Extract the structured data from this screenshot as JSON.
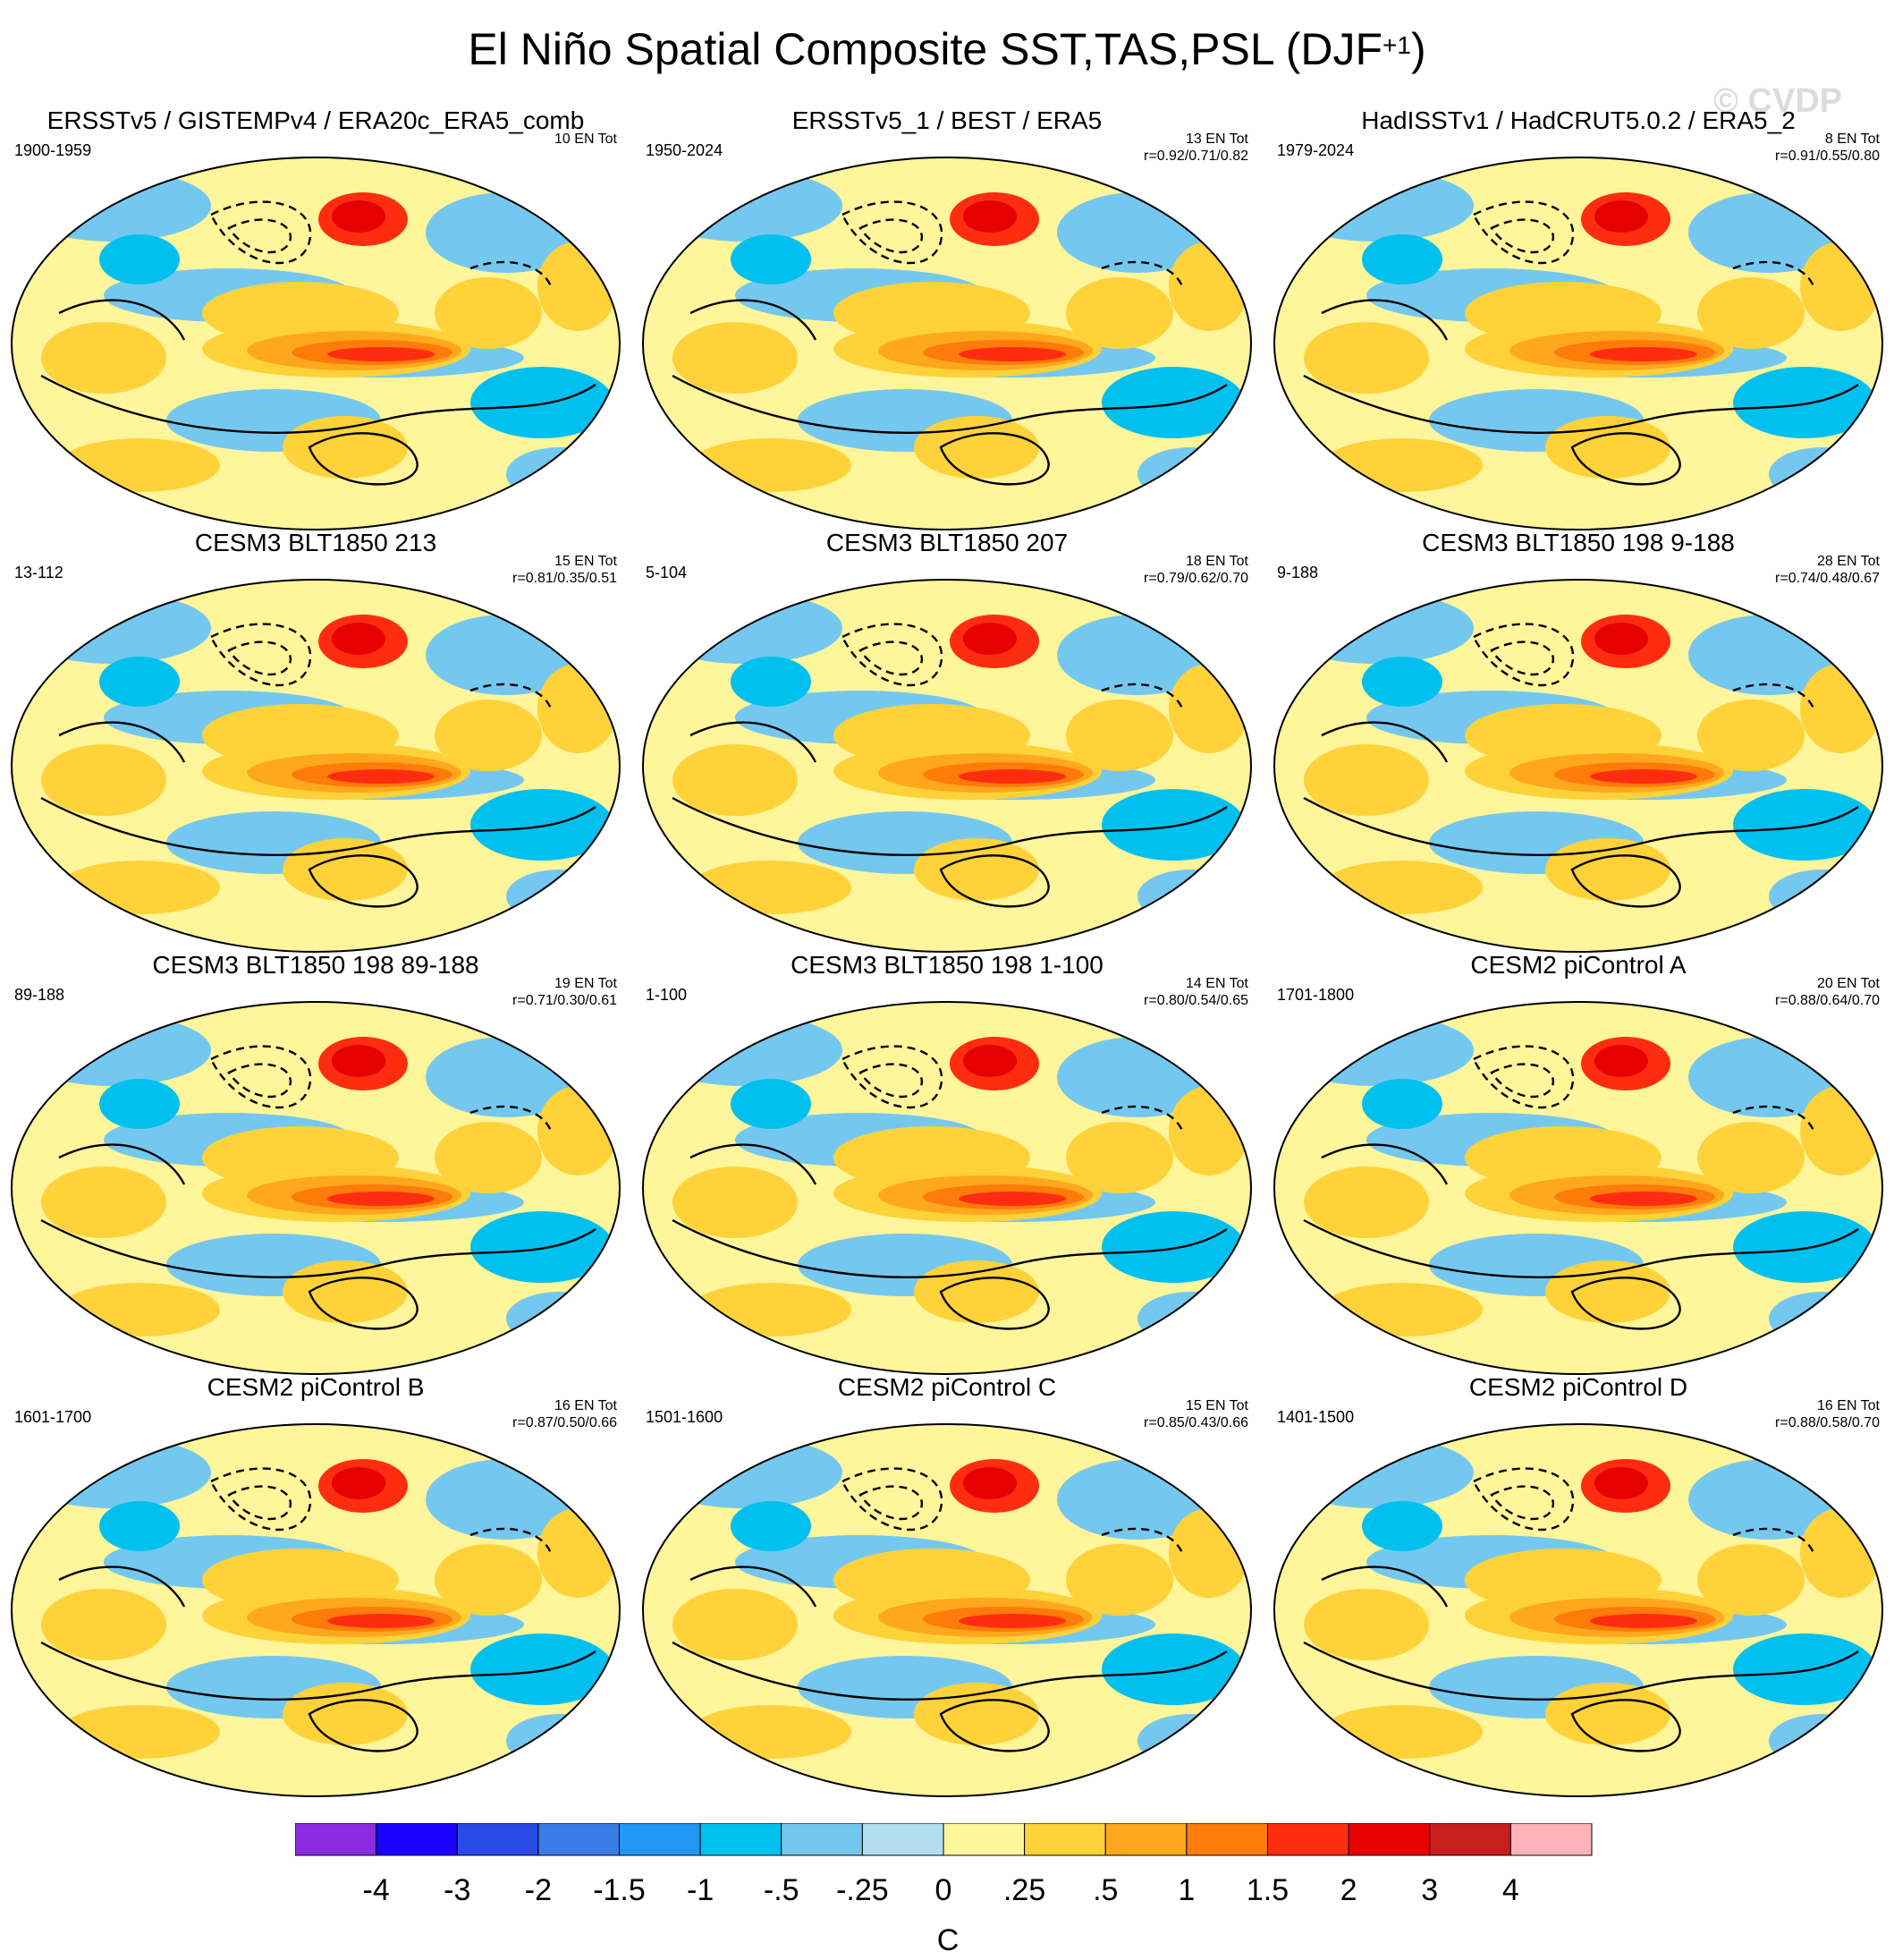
{
  "title": {
    "main": "El Niño Spatial Composite SST,TAS,PSL (DJF",
    "sup": "+1",
    "close": ")"
  },
  "watermark": "© CVDP",
  "chart_data": {
    "type": "heatmap",
    "description_variables": [
      "SST",
      "TAS",
      "PSL"
    ],
    "projection": "Robinson (global)",
    "panels": [
      {
        "title": "ERSSTv5 / GISTEMPv4 / ERA20c_ERA5_comb",
        "period": "1900-1959",
        "count": "10 EN Tot",
        "r": ""
      },
      {
        "title": "ERSSTv5_1 / BEST / ERA5",
        "period": "1950-2024",
        "count": "13 EN Tot",
        "r": "r=0.92/0.71/0.82"
      },
      {
        "title": "HadISSTv1 / HadCRUT5.0.2 / ERA5_2",
        "period": "1979-2024",
        "count": "8 EN Tot",
        "r": "r=0.91/0.55/0.80"
      },
      {
        "title": "CESM3 BLT1850 213",
        "period": "13-112",
        "count": "15 EN Tot",
        "r": "r=0.81/0.35/0.51"
      },
      {
        "title": "CESM3 BLT1850 207",
        "period": "5-104",
        "count": "18 EN Tot",
        "r": "r=0.79/0.62/0.70"
      },
      {
        "title": "CESM3 BLT1850 198 9-188",
        "period": "9-188",
        "count": "28 EN Tot",
        "r": "r=0.74/0.48/0.67"
      },
      {
        "title": "CESM3 BLT1850 198 89-188",
        "period": "89-188",
        "count": "19 EN Tot",
        "r": "r=0.71/0.30/0.61"
      },
      {
        "title": "CESM3 BLT1850 198 1-100",
        "period": "1-100",
        "count": "14 EN Tot",
        "r": "r=0.80/0.54/0.65"
      },
      {
        "title": "CESM2 piControl A",
        "period": "1701-1800",
        "count": "20 EN Tot",
        "r": "r=0.88/0.64/0.70"
      },
      {
        "title": "CESM2 piControl B",
        "period": "1601-1700",
        "count": "16 EN Tot",
        "r": "r=0.87/0.50/0.66"
      },
      {
        "title": "CESM2 piControl C",
        "period": "1501-1600",
        "count": "15 EN Tot",
        "r": "r=0.85/0.43/0.66"
      },
      {
        "title": "CESM2 piControl D",
        "period": "1401-1500",
        "count": "16 EN Tot",
        "r": "r=0.88/0.58/0.70"
      }
    ],
    "colorbar": {
      "labels": [
        "-4",
        "-3",
        "-2",
        "-1.5",
        "-1",
        "-.5",
        "-.25",
        "0",
        ".25",
        ".5",
        "1",
        "1.5",
        "2",
        "3",
        "4"
      ],
      "colors": [
        "#8a2be2",
        "#1a00ff",
        "#2a4ae8",
        "#3a7be8",
        "#2196f3",
        "#00c0f0",
        "#74c8f0",
        "#b3def2",
        "#fff59a",
        "#ffd23a",
        "#ffa81e",
        "#ff7b0a",
        "#ff2d10",
        "#e60000",
        "#c81e1e",
        "#ffb3b8"
      ],
      "unit": "C"
    }
  }
}
